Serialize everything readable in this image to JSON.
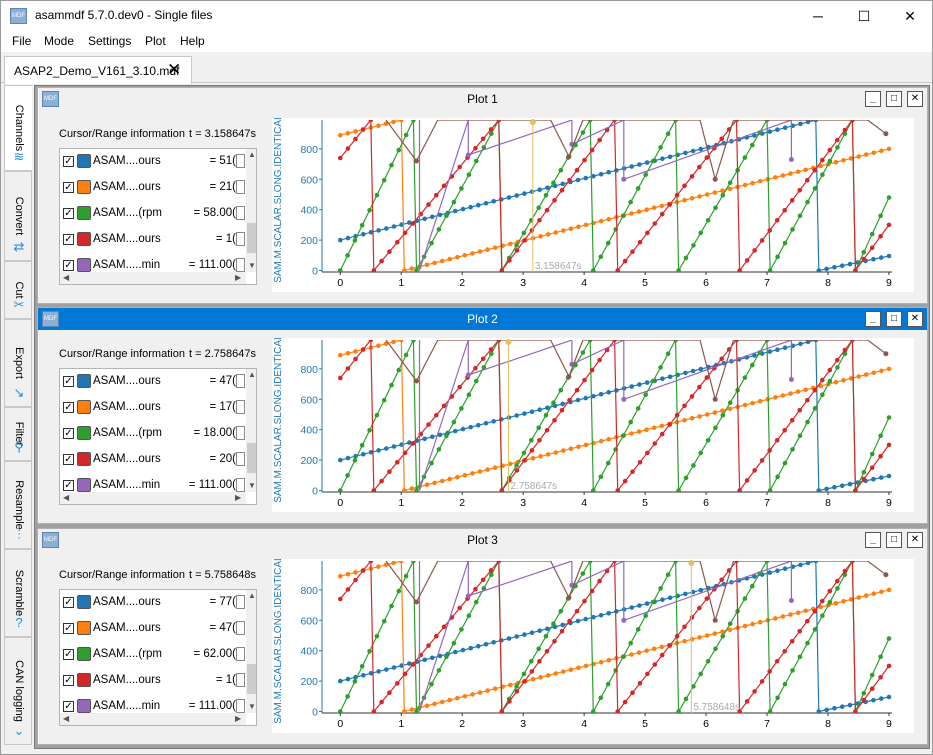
{
  "app": {
    "title": "asammdf 5.7.0.dev0 - Single files",
    "icon_label": "MDF"
  },
  "window_controls": {
    "minimize": "─",
    "maximize": "☐",
    "close": "✕"
  },
  "menu": [
    "File",
    "Mode",
    "Settings",
    "Plot",
    "Help"
  ],
  "file_tab": {
    "label": "ASAP2_Demo_V161_3.10.mdf",
    "close": "✕"
  },
  "side_tabs": [
    {
      "label": "Channels",
      "icon": "channels-icon",
      "glyph": "≋"
    },
    {
      "label": "Convert",
      "icon": "convert-icon",
      "glyph": "⇄"
    },
    {
      "label": "Cut",
      "icon": "scissors-icon",
      "glyph": "✂"
    },
    {
      "label": "Export",
      "icon": "export-icon",
      "glyph": "↘"
    },
    {
      "label": "Filter",
      "icon": "filter-icon",
      "glyph": "⚲"
    },
    {
      "label": "Resample",
      "icon": "resample-icon",
      "glyph": "⫶"
    },
    {
      "label": "Scramble",
      "icon": "scramble-icon",
      "glyph": "?"
    },
    {
      "label": "CAN logging",
      "icon": "can-logging-icon",
      "glyph": "⌄"
    }
  ],
  "plots": [
    {
      "title": "Plot 1",
      "cursor_label": "Cursor/Range information",
      "cursor_time": "t = 3.158647s",
      "cursor_x": 3.158647,
      "marker_text": "3.158647s",
      "active": false,
      "channels": [
        {
          "name": "ASAM....ours",
          "value": "= 51(",
          "color": "#1f77b4",
          "checked": true
        },
        {
          "name": "ASAM....ours",
          "value": "= 21(",
          "color": "#ff7f0e",
          "checked": true
        },
        {
          "name": "ASAM....(rpm",
          "value": "= 58.00(",
          "color": "#2ca02c",
          "checked": true
        },
        {
          "name": "ASAM....ours",
          "value": "= 1(",
          "color": "#d62728",
          "checked": true
        },
        {
          "name": "ASAM.....min",
          "value": "= 111.00(",
          "color": "#9467bd",
          "checked": true
        }
      ]
    },
    {
      "title": "Plot 2",
      "cursor_label": "Cursor/Range information",
      "cursor_time": "t = 2.758647s",
      "cursor_x": 2.758647,
      "marker_text": "2.758647s",
      "active": true,
      "channels": [
        {
          "name": "ASAM....ours",
          "value": "= 47(",
          "color": "#1f77b4",
          "checked": true
        },
        {
          "name": "ASAM....ours",
          "value": "= 17(",
          "color": "#ff7f0e",
          "checked": true
        },
        {
          "name": "ASAM....(rpm",
          "value": "= 18.00(",
          "color": "#2ca02c",
          "checked": true
        },
        {
          "name": "ASAM....ours",
          "value": "= 20(",
          "color": "#d62728",
          "checked": true
        },
        {
          "name": "ASAM.....min",
          "value": "= 111.00(",
          "color": "#9467bd",
          "checked": true
        }
      ]
    },
    {
      "title": "Plot 3",
      "cursor_label": "Cursor/Range information",
      "cursor_time": "t = 5.758648s",
      "cursor_x": 5.758648,
      "marker_text": "5.758648s",
      "active": false,
      "channels": [
        {
          "name": "ASAM....ours",
          "value": "= 77(",
          "color": "#1f77b4",
          "checked": true
        },
        {
          "name": "ASAM....ours",
          "value": "= 47(",
          "color": "#ff7f0e",
          "checked": true
        },
        {
          "name": "ASAM....(rpm",
          "value": "= 62.00(",
          "color": "#2ca02c",
          "checked": true
        },
        {
          "name": "ASAM....ours",
          "value": "= 1(",
          "color": "#d62728",
          "checked": true
        },
        {
          "name": "ASAM.....min",
          "value": "= 111.00(",
          "color": "#9467bd",
          "checked": true
        }
      ]
    }
  ],
  "chart_data": {
    "type": "line",
    "ylabel": "SAM.M.SCALAR.SLONG.IDENTICAL [",
    "x_ticks": [
      0,
      1,
      2,
      3,
      4,
      5,
      6,
      7,
      8,
      9
    ],
    "y_ticks": [
      0,
      200,
      400,
      600,
      800
    ],
    "xlim": [
      -0.3,
      9.05
    ],
    "ylim": [
      -10,
      990
    ],
    "series": [
      {
        "color": "#1f77b4",
        "points": [
          [
            0,
            200
          ],
          [
            7.8,
            990
          ],
          [
            7.85,
            0
          ],
          [
            9,
            95
          ]
        ]
      },
      {
        "color": "#ff7f0e",
        "points": [
          [
            0,
            890
          ],
          [
            1,
            990
          ],
          [
            1.05,
            0
          ],
          [
            9,
            800
          ]
        ]
      },
      {
        "color": "#2ca02c",
        "points": [
          [
            0,
            0
          ],
          [
            1.2,
            990
          ],
          [
            1.25,
            0
          ],
          [
            2.6,
            990
          ],
          [
            2.65,
            0
          ],
          [
            4.1,
            990
          ],
          [
            4.15,
            0
          ],
          [
            5.5,
            990
          ],
          [
            5.55,
            0
          ],
          [
            7,
            990
          ],
          [
            7.05,
            0
          ],
          [
            8.4,
            990
          ],
          [
            8.45,
            0
          ],
          [
            9,
            480
          ]
        ]
      },
      {
        "color": "#d62728",
        "points": [
          [
            0,
            740
          ],
          [
            0.5,
            990
          ],
          [
            0.55,
            0
          ],
          [
            2.6,
            990
          ],
          [
            2.65,
            0
          ],
          [
            4.5,
            990
          ],
          [
            4.55,
            0
          ],
          [
            6.5,
            990
          ],
          [
            6.55,
            0
          ],
          [
            8.4,
            990
          ],
          [
            8.45,
            0
          ],
          [
            9,
            300
          ]
        ]
      },
      {
        "color": "#9467bd",
        "points": [
          [
            1.3,
            990
          ],
          [
            1.3,
            0
          ],
          [
            2.1,
            990
          ],
          [
            2.1,
            760
          ],
          [
            3.8,
            990
          ],
          [
            3.8,
            830
          ],
          [
            4.65,
            990
          ],
          [
            4.65,
            600
          ],
          [
            7.4,
            990
          ],
          [
            7.4,
            730
          ]
        ]
      },
      {
        "color": "#8c564b",
        "points": [
          [
            0.75,
            990
          ],
          [
            1.25,
            720
          ],
          [
            1.6,
            990
          ],
          [
            3.45,
            990
          ],
          [
            3.75,
            750
          ],
          [
            3.98,
            990
          ],
          [
            5.9,
            990
          ],
          [
            6.15,
            600
          ],
          [
            6.45,
            990
          ],
          [
            8.65,
            990
          ],
          [
            8.95,
            900
          ]
        ]
      }
    ]
  }
}
